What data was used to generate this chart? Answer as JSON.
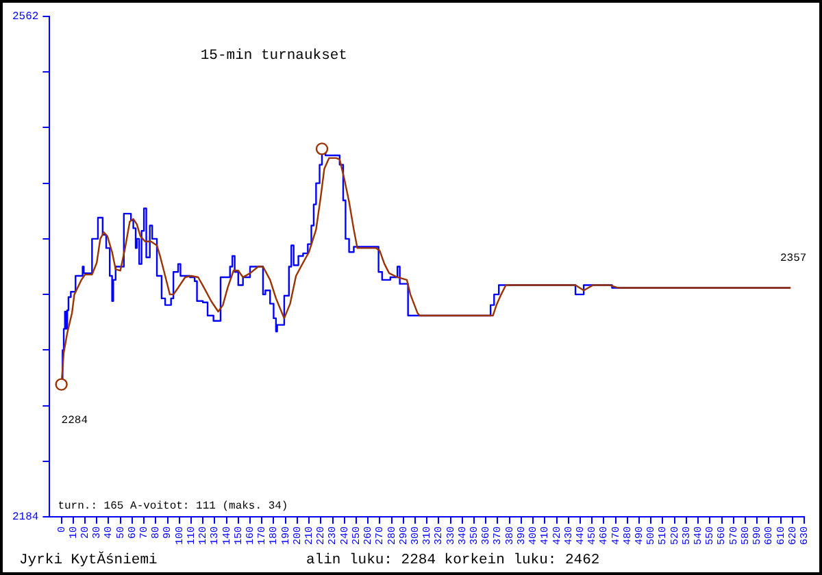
{
  "chart_data": {
    "type": "line",
    "title": "15-min turnaukset",
    "xlim": [
      -10,
      630
    ],
    "xticks": [
      0,
      10,
      20,
      30,
      40,
      50,
      60,
      70,
      80,
      90,
      100,
      110,
      120,
      130,
      140,
      150,
      160,
      170,
      180,
      190,
      200,
      210,
      220,
      230,
      240,
      250,
      260,
      270,
      280,
      290,
      300,
      310,
      320,
      330,
      340,
      350,
      360,
      370,
      380,
      390,
      400,
      410,
      420,
      430,
      440,
      450,
      460,
      470,
      480,
      490,
      500,
      510,
      520,
      530,
      540,
      550,
      560,
      570,
      580,
      590,
      600,
      610,
      620,
      630
    ],
    "ylim": [
      2184,
      2562
    ],
    "yticks": [
      2184,
      {
        "value": 2226,
        "label": null
      },
      {
        "value": 2268,
        "label": null
      },
      {
        "value": 2310,
        "label": null
      },
      {
        "value": 2352,
        "label": null
      },
      {
        "value": 2394,
        "label": null
      },
      {
        "value": 2436,
        "label": null
      },
      {
        "value": 2478,
        "label": null
      },
      {
        "value": 2520,
        "label": null
      },
      2562
    ],
    "marker": "none",
    "series": [
      {
        "type": "step",
        "color": "#0000ff",
        "x": [
          0,
          1,
          2,
          3,
          4,
          5,
          6,
          8,
          12,
          18,
          19,
          26,
          31,
          35,
          38,
          41,
          43,
          44,
          46,
          53,
          59,
          61,
          63,
          64,
          66,
          68,
          70,
          72,
          75,
          77,
          81,
          85,
          88,
          93,
          95,
          99,
          101,
          109,
          113,
          115,
          120,
          124,
          129,
          135,
          143,
          145,
          147,
          150,
          154,
          160,
          171,
          173,
          177,
          180,
          182,
          183,
          189,
          193,
          195,
          197,
          201,
          205,
          209,
          212,
          214,
          216,
          219,
          221,
          224,
          236,
          239,
          241,
          244,
          248,
          269,
          272,
          279,
          285,
          287,
          294,
          364,
          367,
          371,
          436,
          443,
          467,
          618
        ],
        "values": [
          2284,
          2310,
          2326,
          2339,
          2326,
          2340,
          2350,
          2354,
          2366,
          2373,
          2368,
          2394,
          2410,
          2397,
          2387,
          2366,
          2347,
          2363,
          2373,
          2413,
          2408,
          2402,
          2387,
          2394,
          2375,
          2400,
          2417,
          2380,
          2404,
          2394,
          2366,
          2349,
          2344,
          2349,
          2369,
          2375,
          2366,
          2365,
          2362,
          2347,
          2346,
          2336,
          2332,
          2365,
          2373,
          2381,
          2369,
          2359,
          2365,
          2373,
          2352,
          2355,
          2345,
          2334,
          2324,
          2329,
          2351,
          2373,
          2389,
          2374,
          2381,
          2383,
          2390,
          2404,
          2420,
          2436,
          2450,
          2462,
          2457,
          2450,
          2423,
          2394,
          2384,
          2388,
          2369,
          2363,
          2365,
          2373,
          2360,
          2336,
          2344,
          2352,
          2359,
          2352,
          2359,
          2357,
          2357
        ]
      },
      {
        "color": "#993300",
        "x": [
          0,
          2,
          5,
          9,
          11,
          17,
          20,
          26,
          30,
          33,
          36,
          39,
          43,
          46,
          50,
          54,
          58,
          61,
          64,
          67,
          71,
          76,
          81,
          84,
          88,
          92,
          95,
          99,
          105,
          110,
          116,
          121,
          127,
          133,
          137,
          141,
          146,
          150,
          154,
          160,
          167,
          171,
          177,
          182,
          188,
          189,
          194,
          199,
          205,
          210,
          216,
          220,
          223,
          227,
          233,
          236,
          240,
          244,
          248,
          251,
          256,
          267,
          270,
          274,
          278,
          285,
          293,
          296,
          302,
          304,
          366,
          369,
          373,
          377,
          436,
          443,
          451,
          465,
          472,
          618
        ],
        "values": [
          2284,
          2308,
          2323,
          2338,
          2352,
          2363,
          2367,
          2367,
          2376,
          2394,
          2399,
          2396,
          2384,
          2371,
          2370,
          2387,
          2407,
          2409,
          2405,
          2396,
          2392,
          2392,
          2389,
          2380,
          2366,
          2352,
          2352,
          2357,
          2365,
          2366,
          2365,
          2357,
          2347,
          2339,
          2344,
          2357,
          2370,
          2370,
          2365,
          2368,
          2373,
          2373,
          2363,
          2349,
          2336,
          2334,
          2345,
          2366,
          2376,
          2384,
          2401,
          2426,
          2447,
          2455,
          2455,
          2454,
          2439,
          2422,
          2401,
          2387,
          2387,
          2387,
          2385,
          2375,
          2368,
          2365,
          2363,
          2352,
          2338,
          2336,
          2336,
          2344,
          2352,
          2359,
          2359,
          2355,
          2359,
          2359,
          2357,
          2357
        ]
      },
      {
        "type": "scatter",
        "color": "#993300",
        "marker": "circle",
        "x": [
          0,
          221
        ],
        "values": [
          2284,
          2462
        ]
      }
    ],
    "annotations": [
      "turn.: 165 A-voitot: 111 (maks. 34)",
      "Jyrki KytĂśniemi",
      "alin luku: 2284 korkein luku: 2462",
      {
        "text": "2284",
        "x": 0,
        "y": 2284
      },
      {
        "text": "2357",
        "x": 618,
        "y": 2357
      }
    ]
  }
}
